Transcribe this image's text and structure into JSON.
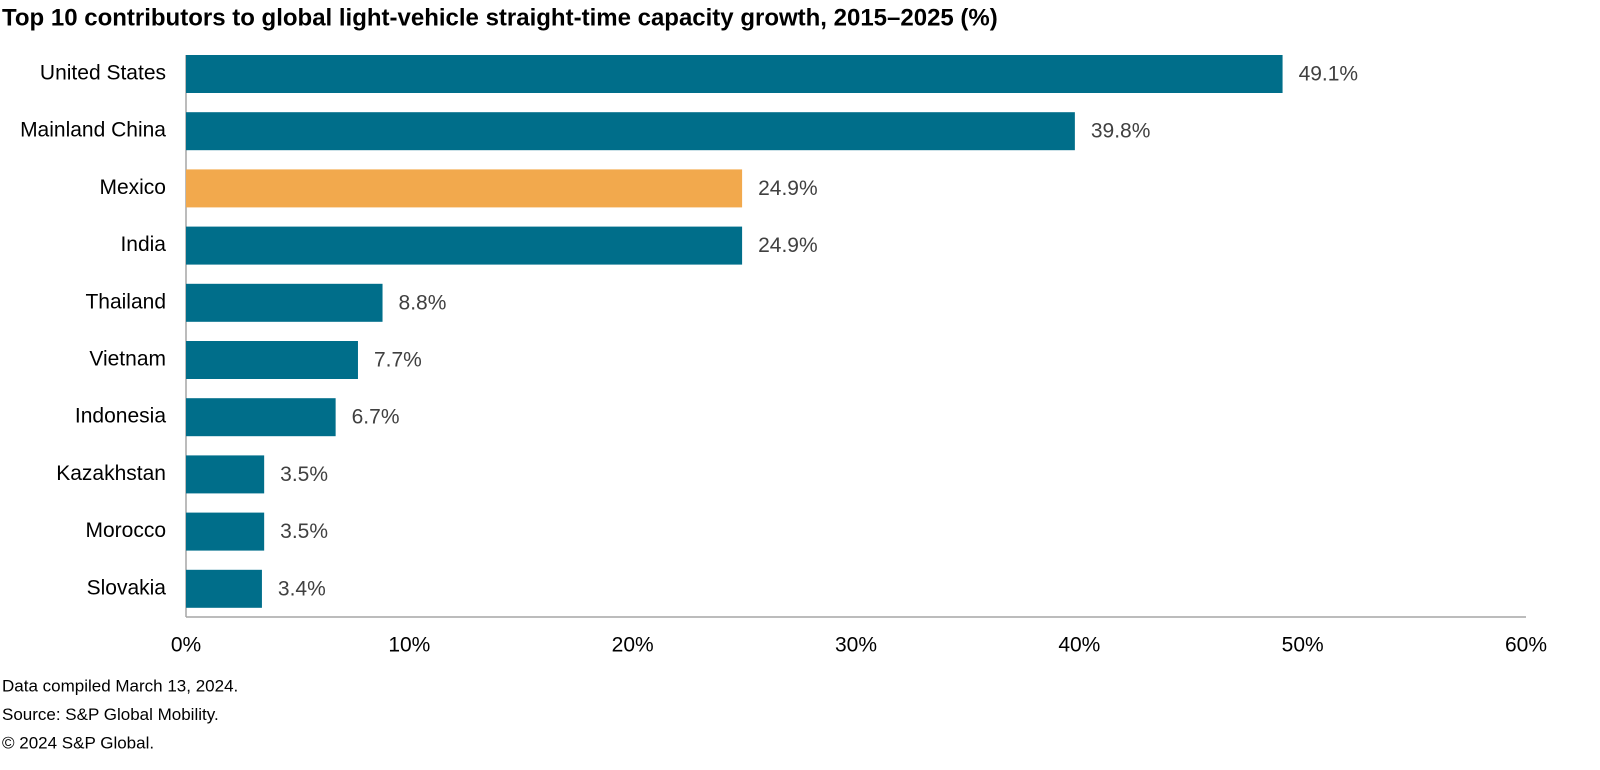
{
  "chart_data": {
    "type": "hbar",
    "title": "Top 10 contributors to global light-vehicle straight-time capacity growth, 2015–2025 (%)",
    "categories": [
      "United States",
      "Mainland China",
      "Mexico",
      "India",
      "Thailand",
      "Vietnam",
      "Indonesia",
      "Kazakhstan",
      "Morocco",
      "Slovakia"
    ],
    "values": [
      49.1,
      39.8,
      24.9,
      24.9,
      8.8,
      7.7,
      6.7,
      3.5,
      3.5,
      3.4
    ],
    "value_labels": [
      "49.1%",
      "39.8%",
      "24.9%",
      "24.9%",
      "8.8%",
      "7.7%",
      "6.7%",
      "3.5%",
      "3.5%",
      "3.4%"
    ],
    "colors": [
      "#006e8a",
      "#006e8a",
      "#f2a94d",
      "#006e8a",
      "#006e8a",
      "#006e8a",
      "#006e8a",
      "#006e8a",
      "#006e8a",
      "#006e8a"
    ],
    "xlim": [
      0,
      60
    ],
    "xticks": [
      {
        "value": 0,
        "label": "0%"
      },
      {
        "value": 10,
        "label": "10%"
      },
      {
        "value": 20,
        "label": "20%"
      },
      {
        "value": 30,
        "label": "30%"
      },
      {
        "value": 40,
        "label": "40%"
      },
      {
        "value": 50,
        "label": "50%"
      },
      {
        "value": 60,
        "label": "60%"
      }
    ],
    "notes": [
      "Data compiled March 13, 2024.",
      "Source: S&P Global Mobility.",
      "© 2024 S&P Global."
    ]
  }
}
